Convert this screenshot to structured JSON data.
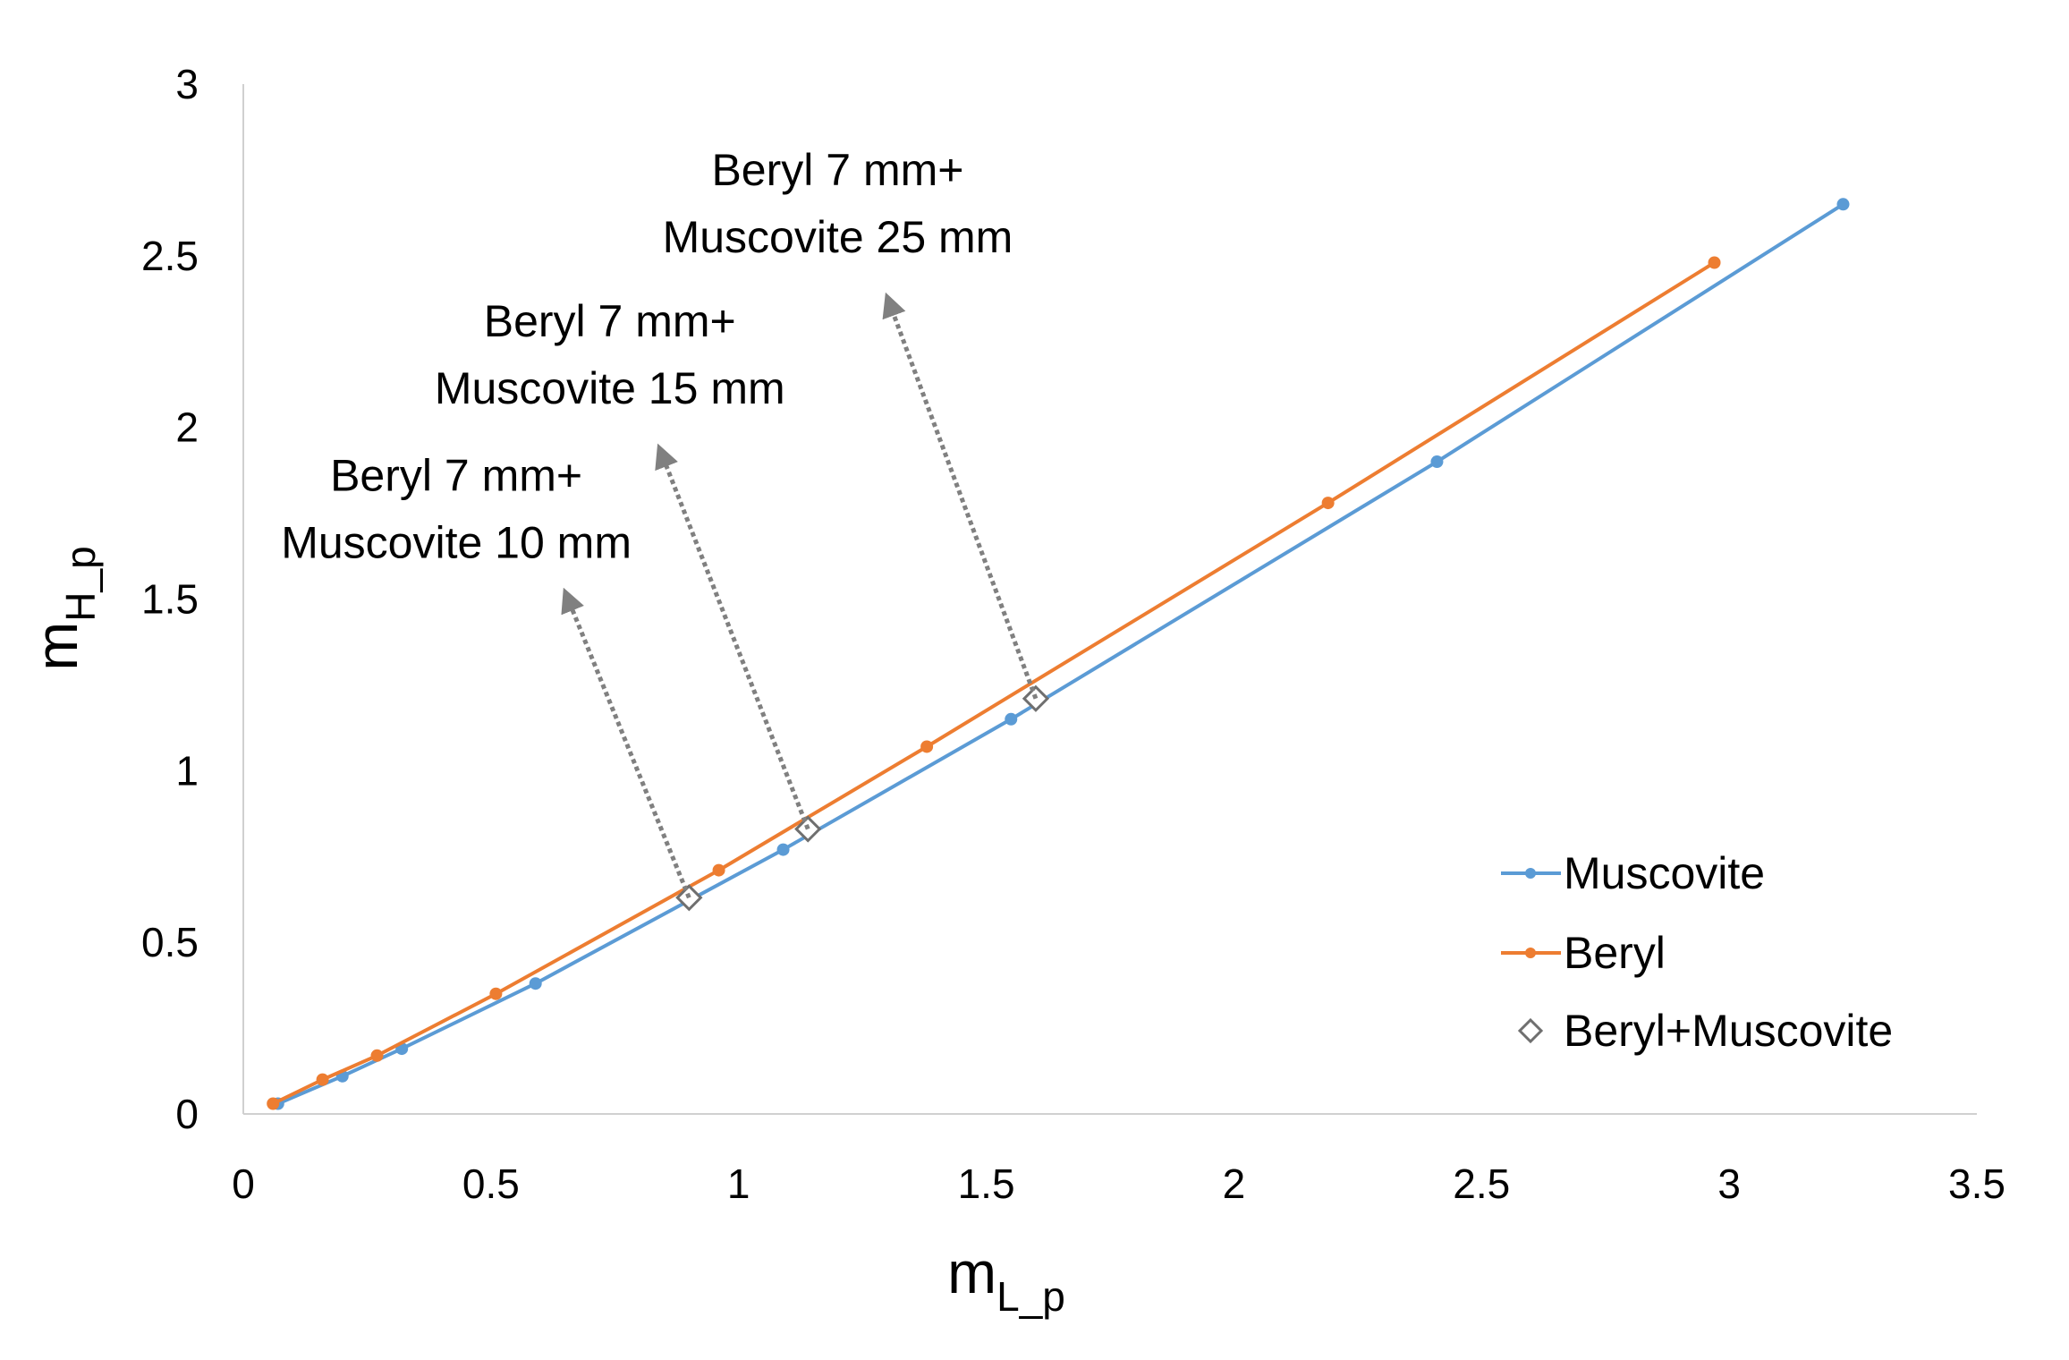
{
  "chart_data": {
    "type": "line",
    "xlabel": {
      "main": "m",
      "sub": "L_p"
    },
    "ylabel": {
      "main": "m",
      "sub": "H_p"
    },
    "xlim": [
      0,
      3.5
    ],
    "ylim": [
      0,
      3
    ],
    "xticks": [
      "0",
      "0.5",
      "1",
      "1.5",
      "2",
      "2.5",
      "3",
      "3.5"
    ],
    "yticks": [
      "0",
      "0.5",
      "1",
      "1.5",
      "2",
      "2.5",
      "3"
    ],
    "grid": false,
    "legend_position": "bottom-right",
    "series": [
      {
        "name": "Muscovite",
        "color": "#5b9bd5",
        "marker": "circle",
        "x": [
          0.07,
          0.2,
          0.32,
          0.59,
          1.09,
          1.55,
          2.41,
          3.23
        ],
        "y": [
          0.03,
          0.11,
          0.19,
          0.38,
          0.77,
          1.15,
          1.9,
          2.65
        ]
      },
      {
        "name": "Beryl",
        "color": "#ed7d31",
        "marker": "circle",
        "x": [
          0.06,
          0.16,
          0.27,
          0.51,
          0.96,
          1.38,
          2.19,
          2.97
        ],
        "y": [
          0.03,
          0.1,
          0.17,
          0.35,
          0.71,
          1.07,
          1.78,
          2.48
        ]
      },
      {
        "name": "Beryl+Muscovite",
        "color": "#6f6f6f",
        "marker": "diamond",
        "x": [
          0.9,
          1.14,
          1.6
        ],
        "y": [
          0.63,
          0.83,
          1.21
        ]
      }
    ],
    "annotations": [
      {
        "lines": [
          "Beryl 7 mm+",
          "Muscovite 10 mm"
        ],
        "x": 0.9,
        "y": 0.63,
        "arrow_x": 0.65,
        "arrow_y": 1.52,
        "text_x": 0.43,
        "text_y": 1.62
      },
      {
        "lines": [
          "Beryl 7 mm+",
          "Muscovite 15 mm"
        ],
        "x": 1.14,
        "y": 0.83,
        "arrow_x": 0.84,
        "arrow_y": 1.94,
        "text_x": 0.74,
        "text_y": 2.07
      },
      {
        "lines": [
          "Beryl 7 mm+",
          "Muscovite 25 mm"
        ],
        "x": 1.6,
        "y": 1.21,
        "arrow_x": 1.3,
        "arrow_y": 2.38,
        "text_x": 1.2,
        "text_y": 2.51
      }
    ]
  }
}
